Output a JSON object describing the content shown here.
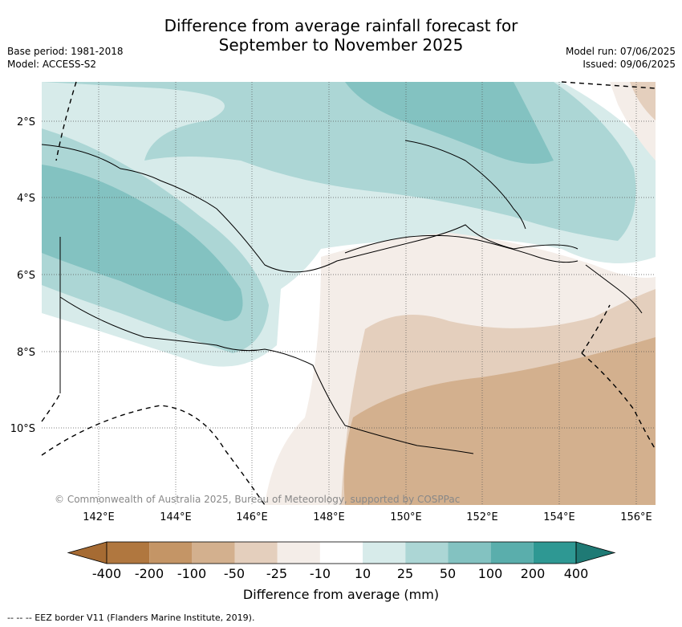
{
  "header": {
    "title_line1": "Difference from average rainfall forecast for",
    "title_line2": "September to November 2025",
    "left_line1": "Base period: 1981-2018",
    "left_line2": "Model: ACCESS-S2",
    "right_line1": "Model run: 07/06/2025",
    "right_line2": "Issued: 09/06/2025"
  },
  "map": {
    "copyright": "© Commonwealth of Australia 2025, Bureau of Meteorology, supported by COSPPac",
    "lat_labels": [
      "2°S",
      "4°S",
      "6°S",
      "8°S",
      "10°S"
    ],
    "lon_labels": [
      "142°E",
      "144°E",
      "146°E",
      "148°E",
      "150°E",
      "152°E",
      "154°E",
      "156°E"
    ],
    "grid": "dotted"
  },
  "colorbar": {
    "ticks": [
      "-400",
      "-200",
      "-100",
      "-50",
      "-25",
      "-10",
      "10",
      "25",
      "50",
      "100",
      "200",
      "400"
    ],
    "colors": [
      "#a66b33",
      "#b0773f",
      "#c49566",
      "#d3b08e",
      "#e4cfbd",
      "#f4ede8",
      "#ffffff",
      "#d7ebea",
      "#acd6d5",
      "#83c2c1",
      "#5aaeac",
      "#2e9893",
      "#1f7a75"
    ],
    "label": "Difference from average (mm)"
  },
  "footer": {
    "legend_text": "--  --  -- EEZ border V11 (Flanders Marine Institute, 2019)."
  }
}
